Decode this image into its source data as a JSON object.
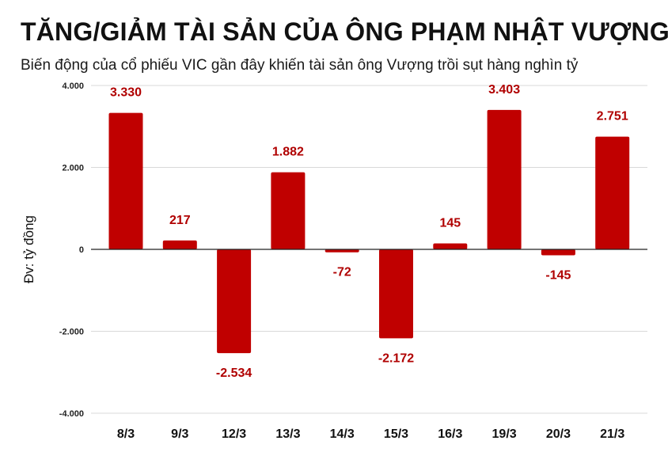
{
  "chart_data": {
    "type": "bar",
    "title": "TĂNG/GIẢM TÀI SẢN CỦA ÔNG PHẠM NHẬT VƯỢNG",
    "subtitle": "Biến động của cổ phiếu VIC gần đây khiến tài sản ông Vượng trồi sụt hàng nghìn tỷ",
    "xlabel": "",
    "ylabel": "Đv: tỷ đồng",
    "categories": [
      "8/3",
      "9/3",
      "12/3",
      "13/3",
      "14/3",
      "15/3",
      "16/3",
      "19/3",
      "20/3",
      "21/3"
    ],
    "values": [
      3330,
      217,
      -2534,
      1882,
      -72,
      -2172,
      145,
      3403,
      -145,
      2751
    ],
    "value_labels": [
      "3.330",
      "217",
      "-2.534",
      "1.882",
      "-72",
      "-2.172",
      "145",
      "3.403",
      "-145",
      "2.751"
    ],
    "ylim": [
      -4000,
      4000
    ],
    "yticks": [
      4000,
      2000,
      0,
      -2000,
      -4000
    ],
    "ytick_labels": [
      "4.000",
      "2.000",
      "0",
      "-2.000",
      "-4.000"
    ],
    "grid": true,
    "legend": "none",
    "bar_color": "#c00000",
    "label_color": "#b00000"
  }
}
